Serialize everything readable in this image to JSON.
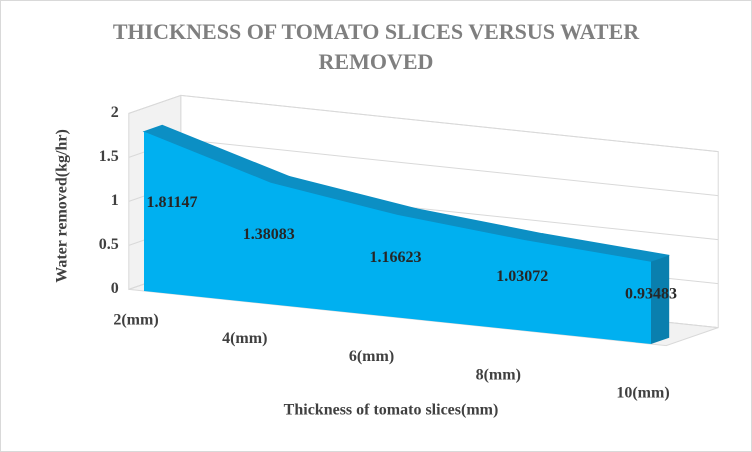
{
  "chart_data": {
    "type": "area3d",
    "title": "THICKNESS OF TOMATO SLICES VERSUS WATER REMOVED",
    "x_label": "Thickness  of tomato slices(mm)",
    "y_label": "Water removed(kg/hr)",
    "categories": [
      "2(mm)",
      "4(mm)",
      "6(mm)",
      "8(mm)",
      "10(mm)"
    ],
    "values": [
      1.81147,
      1.38083,
      1.16623,
      1.03072,
      0.93483
    ],
    "color": "#00b0f0",
    "ylim": [
      0,
      2
    ],
    "yticks": [
      0,
      0.5,
      1,
      1.5,
      2
    ],
    "grid": true
  }
}
